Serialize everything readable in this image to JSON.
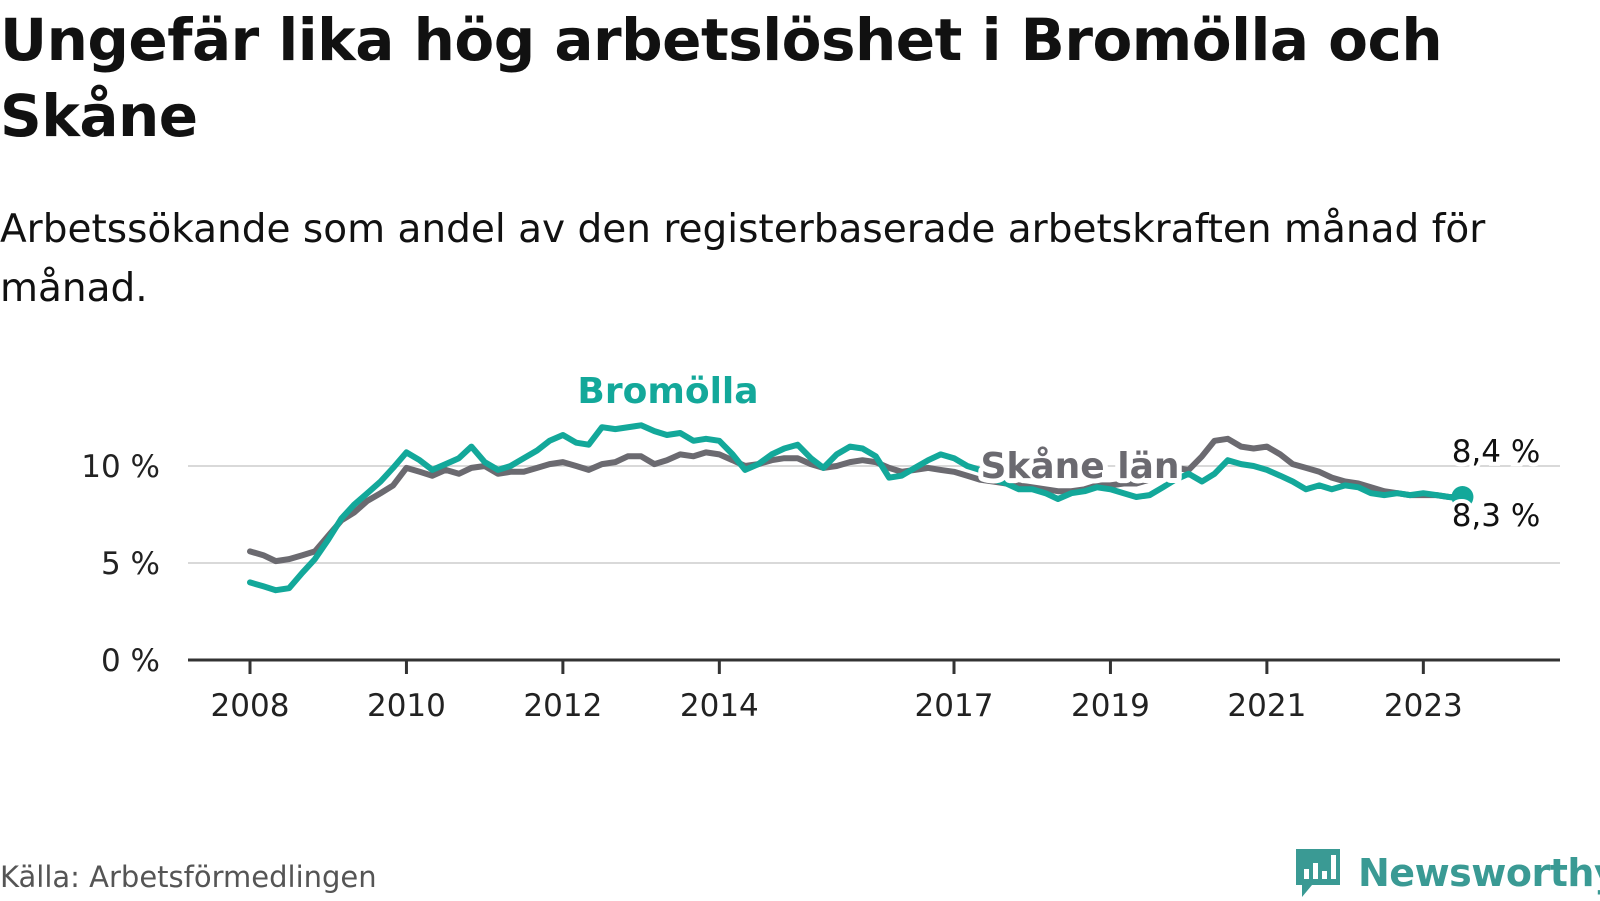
{
  "title": "Ungefär lika hög arbetslöshet i Bromölla och Skåne",
  "subtitle": "Arbetssökande som andel av den registerbaserade arbetskraften månad för månad.",
  "source": "Källa: Arbetsförmedlingen",
  "logo_text": "Newsworthy",
  "logo_icon": "bar-chart-logo-icon",
  "colors": {
    "bromolla": "#13a89a",
    "skane": "#6b6a70",
    "gridline": "#d9d9d9",
    "axis": "#333333",
    "logo": "#3a9a94"
  },
  "chart_data": {
    "type": "line",
    "title": "Ungefär lika hög arbetslöshet i Bromölla och Skåne",
    "xlabel": "",
    "ylabel": "",
    "ylim": [
      0,
      12
    ],
    "xlim": [
      2008,
      2023.75
    ],
    "x_ticks": [
      2008,
      2010,
      2012,
      2014,
      2017,
      2019,
      2021,
      2023
    ],
    "x_tick_labels": [
      "2008",
      "2010",
      "2012",
      "2014",
      "2017",
      "2019",
      "2021",
      "2023"
    ],
    "y_ticks": [
      0,
      5,
      10
    ],
    "y_tick_labels": [
      "0 %",
      "5 %",
      "10 %"
    ],
    "grid": "horizontal",
    "legend": "inline labels",
    "series": [
      {
        "name": "Bromölla",
        "label": "Bromölla",
        "end_label": "8,3 %",
        "end_marker": true,
        "points": [
          [
            2008.0,
            4.0
          ],
          [
            2008.17,
            3.8
          ],
          [
            2008.33,
            3.6
          ],
          [
            2008.5,
            3.7
          ],
          [
            2008.67,
            4.5
          ],
          [
            2008.83,
            5.2
          ],
          [
            2009.0,
            6.2
          ],
          [
            2009.17,
            7.3
          ],
          [
            2009.33,
            8.0
          ],
          [
            2009.5,
            8.6
          ],
          [
            2009.67,
            9.2
          ],
          [
            2009.83,
            9.9
          ],
          [
            2010.0,
            10.7
          ],
          [
            2010.17,
            10.3
          ],
          [
            2010.33,
            9.8
          ],
          [
            2010.5,
            10.1
          ],
          [
            2010.67,
            10.4
          ],
          [
            2010.83,
            11.0
          ],
          [
            2011.0,
            10.2
          ],
          [
            2011.17,
            9.8
          ],
          [
            2011.33,
            10.0
          ],
          [
            2011.5,
            10.4
          ],
          [
            2011.67,
            10.8
          ],
          [
            2011.83,
            11.3
          ],
          [
            2012.0,
            11.6
          ],
          [
            2012.17,
            11.2
          ],
          [
            2012.33,
            11.1
          ],
          [
            2012.5,
            12.0
          ],
          [
            2012.67,
            11.9
          ],
          [
            2013.0,
            12.1
          ],
          [
            2013.17,
            11.8
          ],
          [
            2013.33,
            11.6
          ],
          [
            2013.5,
            11.7
          ],
          [
            2013.67,
            11.3
          ],
          [
            2013.83,
            11.4
          ],
          [
            2014.0,
            11.3
          ],
          [
            2014.17,
            10.6
          ],
          [
            2014.33,
            9.8
          ],
          [
            2014.5,
            10.1
          ],
          [
            2014.67,
            10.6
          ],
          [
            2014.83,
            10.9
          ],
          [
            2015.0,
            11.1
          ],
          [
            2015.17,
            10.4
          ],
          [
            2015.33,
            9.9
          ],
          [
            2015.5,
            10.6
          ],
          [
            2015.67,
            11.0
          ],
          [
            2015.83,
            10.9
          ],
          [
            2016.0,
            10.5
          ],
          [
            2016.17,
            9.4
          ],
          [
            2016.33,
            9.5
          ],
          [
            2016.5,
            9.9
          ],
          [
            2016.67,
            10.3
          ],
          [
            2016.83,
            10.6
          ],
          [
            2017.0,
            10.4
          ],
          [
            2017.17,
            10.0
          ],
          [
            2017.33,
            9.8
          ],
          [
            2017.5,
            9.3
          ],
          [
            2017.67,
            9.1
          ],
          [
            2017.83,
            8.8
          ],
          [
            2018.0,
            8.8
          ],
          [
            2018.17,
            8.6
          ],
          [
            2018.33,
            8.3
          ],
          [
            2018.5,
            8.6
          ],
          [
            2018.67,
            8.7
          ],
          [
            2018.83,
            8.9
          ],
          [
            2019.0,
            8.8
          ],
          [
            2019.17,
            8.6
          ],
          [
            2019.33,
            8.4
          ],
          [
            2019.5,
            8.5
          ],
          [
            2019.67,
            8.9
          ],
          [
            2019.83,
            9.3
          ],
          [
            2020.0,
            9.6
          ],
          [
            2020.17,
            9.2
          ],
          [
            2020.33,
            9.6
          ],
          [
            2020.5,
            10.3
          ],
          [
            2020.67,
            10.1
          ],
          [
            2020.83,
            10.0
          ],
          [
            2021.0,
            9.8
          ],
          [
            2021.17,
            9.5
          ],
          [
            2021.33,
            9.2
          ],
          [
            2021.5,
            8.8
          ],
          [
            2021.67,
            9.0
          ],
          [
            2021.83,
            8.8
          ],
          [
            2022.0,
            9.0
          ],
          [
            2022.17,
            8.9
          ],
          [
            2022.33,
            8.6
          ],
          [
            2022.5,
            8.5
          ],
          [
            2022.67,
            8.6
          ],
          [
            2022.83,
            8.5
          ],
          [
            2023.0,
            8.6
          ],
          [
            2023.17,
            8.5
          ],
          [
            2023.33,
            8.4
          ],
          [
            2023.5,
            8.3
          ]
        ]
      },
      {
        "name": "Skåne län",
        "label": "Skåne län",
        "end_label": "8,4 %",
        "end_marker": false,
        "points": [
          [
            2008.0,
            5.6
          ],
          [
            2008.17,
            5.4
          ],
          [
            2008.33,
            5.1
          ],
          [
            2008.5,
            5.2
          ],
          [
            2008.67,
            5.4
          ],
          [
            2008.83,
            5.6
          ],
          [
            2009.0,
            6.4
          ],
          [
            2009.17,
            7.2
          ],
          [
            2009.33,
            7.6
          ],
          [
            2009.5,
            8.2
          ],
          [
            2009.67,
            8.6
          ],
          [
            2009.83,
            9.0
          ],
          [
            2010.0,
            9.9
          ],
          [
            2010.17,
            9.7
          ],
          [
            2010.33,
            9.5
          ],
          [
            2010.5,
            9.8
          ],
          [
            2010.67,
            9.6
          ],
          [
            2010.83,
            9.9
          ],
          [
            2011.0,
            10.0
          ],
          [
            2011.17,
            9.6
          ],
          [
            2011.33,
            9.7
          ],
          [
            2011.5,
            9.7
          ],
          [
            2011.67,
            9.9
          ],
          [
            2011.83,
            10.1
          ],
          [
            2012.0,
            10.2
          ],
          [
            2012.17,
            10.0
          ],
          [
            2012.33,
            9.8
          ],
          [
            2012.5,
            10.1
          ],
          [
            2012.67,
            10.2
          ],
          [
            2012.83,
            10.5
          ],
          [
            2013.0,
            10.5
          ],
          [
            2013.17,
            10.1
          ],
          [
            2013.33,
            10.3
          ],
          [
            2013.5,
            10.6
          ],
          [
            2013.67,
            10.5
          ],
          [
            2013.83,
            10.7
          ],
          [
            2014.0,
            10.6
          ],
          [
            2014.17,
            10.3
          ],
          [
            2014.33,
            10.0
          ],
          [
            2014.5,
            10.1
          ],
          [
            2014.67,
            10.3
          ],
          [
            2014.83,
            10.4
          ],
          [
            2015.0,
            10.4
          ],
          [
            2015.17,
            10.1
          ],
          [
            2015.33,
            9.9
          ],
          [
            2015.5,
            10.0
          ],
          [
            2015.67,
            10.2
          ],
          [
            2015.83,
            10.3
          ],
          [
            2016.0,
            10.2
          ],
          [
            2016.17,
            9.9
          ],
          [
            2016.33,
            9.7
          ],
          [
            2016.5,
            9.8
          ],
          [
            2016.67,
            9.9
          ],
          [
            2016.83,
            9.8
          ],
          [
            2017.0,
            9.7
          ],
          [
            2017.17,
            9.5
          ],
          [
            2017.33,
            9.3
          ],
          [
            2017.5,
            9.2
          ],
          [
            2017.67,
            9.1
          ],
          [
            2017.83,
            9.0
          ],
          [
            2018.0,
            8.9
          ],
          [
            2018.17,
            8.8
          ],
          [
            2018.33,
            8.7
          ],
          [
            2018.5,
            8.7
          ],
          [
            2018.67,
            8.8
          ],
          [
            2018.83,
            9.0
          ],
          [
            2019.0,
            9.0
          ],
          [
            2019.17,
            9.1
          ],
          [
            2019.33,
            9.1
          ],
          [
            2019.5,
            9.3
          ],
          [
            2019.67,
            9.6
          ],
          [
            2019.83,
            9.9
          ],
          [
            2020.0,
            9.8
          ],
          [
            2020.17,
            10.5
          ],
          [
            2020.33,
            11.3
          ],
          [
            2020.5,
            11.4
          ],
          [
            2020.67,
            11.0
          ],
          [
            2020.83,
            10.9
          ],
          [
            2021.0,
            11.0
          ],
          [
            2021.17,
            10.6
          ],
          [
            2021.33,
            10.1
          ],
          [
            2021.5,
            9.9
          ],
          [
            2021.67,
            9.7
          ],
          [
            2021.83,
            9.4
          ],
          [
            2022.0,
            9.2
          ],
          [
            2022.17,
            9.1
          ],
          [
            2022.33,
            8.9
          ],
          [
            2022.5,
            8.7
          ],
          [
            2022.67,
            8.6
          ],
          [
            2022.83,
            8.5
          ],
          [
            2023.0,
            8.5
          ],
          [
            2023.17,
            8.5
          ],
          [
            2023.33,
            8.4
          ],
          [
            2023.5,
            8.4
          ]
        ]
      }
    ]
  }
}
